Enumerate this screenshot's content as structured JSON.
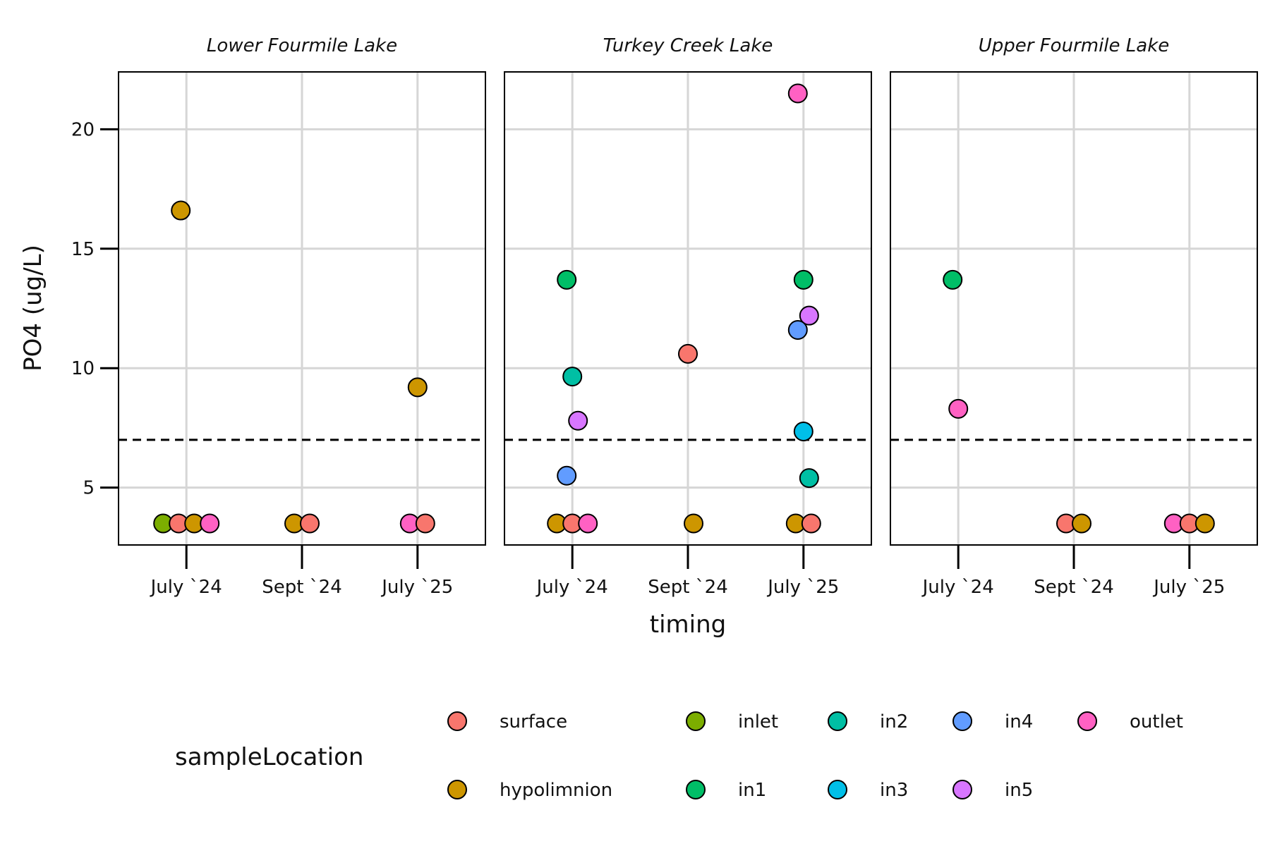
{
  "chart_data": {
    "type": "scatter",
    "facets": [
      {
        "title": "Lower Fourmile Lake",
        "points": [
          {
            "x": "July `24",
            "y": 16.6,
            "location": "hypolimnion"
          },
          {
            "x": "July `24",
            "y": 3.5,
            "location": "inlet"
          },
          {
            "x": "July `24",
            "y": 3.5,
            "location": "surface"
          },
          {
            "x": "July `24",
            "y": 3.5,
            "location": "hypolimnion"
          },
          {
            "x": "July `24",
            "y": 3.5,
            "location": "outlet"
          },
          {
            "x": "Sept `24",
            "y": 3.5,
            "location": "hypolimnion"
          },
          {
            "x": "Sept `24",
            "y": 3.5,
            "location": "surface"
          },
          {
            "x": "July `25",
            "y": 9.2,
            "location": "hypolimnion"
          },
          {
            "x": "July `25",
            "y": 3.5,
            "location": "outlet"
          },
          {
            "x": "July `25",
            "y": 3.5,
            "location": "surface"
          }
        ]
      },
      {
        "title": "Turkey Creek Lake",
        "points": [
          {
            "x": "July `24",
            "y": 13.7,
            "location": "in1"
          },
          {
            "x": "July `24",
            "y": 9.65,
            "location": "in2"
          },
          {
            "x": "July `24",
            "y": 7.8,
            "location": "in5"
          },
          {
            "x": "July `24",
            "y": 5.5,
            "location": "in4"
          },
          {
            "x": "July `24",
            "y": 3.5,
            "location": "hypolimnion"
          },
          {
            "x": "July `24",
            "y": 3.5,
            "location": "surface"
          },
          {
            "x": "July `24",
            "y": 3.5,
            "location": "outlet"
          },
          {
            "x": "Sept `24",
            "y": 10.6,
            "location": "surface"
          },
          {
            "x": "Sept `24",
            "y": 3.5,
            "location": "hypolimnion"
          },
          {
            "x": "July `25",
            "y": 21.5,
            "location": "outlet"
          },
          {
            "x": "July `25",
            "y": 13.7,
            "location": "in1"
          },
          {
            "x": "July `25",
            "y": 12.2,
            "location": "in5"
          },
          {
            "x": "July `25",
            "y": 11.6,
            "location": "in4"
          },
          {
            "x": "July `25",
            "y": 7.35,
            "location": "in3"
          },
          {
            "x": "July `25",
            "y": 5.4,
            "location": "in2"
          },
          {
            "x": "July `25",
            "y": 3.5,
            "location": "hypolimnion"
          },
          {
            "x": "July `25",
            "y": 3.5,
            "location": "surface"
          }
        ]
      },
      {
        "title": "Upper Fourmile Lake",
        "points": [
          {
            "x": "July `24",
            "y": 13.7,
            "location": "in1"
          },
          {
            "x": "July `24",
            "y": 8.3,
            "location": "outlet"
          },
          {
            "x": "Sept `24",
            "y": 3.5,
            "location": "surface"
          },
          {
            "x": "Sept `24",
            "y": 3.5,
            "location": "hypolimnion"
          },
          {
            "x": "July `25",
            "y": 3.5,
            "location": "outlet"
          },
          {
            "x": "July `25",
            "y": 3.5,
            "location": "surface"
          },
          {
            "x": "July `25",
            "y": 3.5,
            "location": "hypolimnion"
          }
        ]
      }
    ],
    "categories": [
      "July `24",
      "Sept `24",
      "July `25"
    ],
    "xlabel": "timing",
    "ylabel": "PO4 (ug/L)",
    "yticks": [
      5,
      10,
      15,
      20
    ],
    "ylim": [
      2.6,
      22.4
    ],
    "reference_line": {
      "y": 7,
      "style": "dashed"
    },
    "grid": true,
    "legend": {
      "title": "sampleLocation",
      "position": "bottom",
      "entries": [
        {
          "label": "surface",
          "color": "#F8766D"
        },
        {
          "label": "hypolimnion",
          "color": "#CD9600"
        },
        {
          "label": "inlet",
          "color": "#7CAE00"
        },
        {
          "label": "in1",
          "color": "#00BE67"
        },
        {
          "label": "in2",
          "color": "#00BFA4"
        },
        {
          "label": "in3",
          "color": "#00BFE8"
        },
        {
          "label": "in4",
          "color": "#619CFF"
        },
        {
          "label": "in5",
          "color": "#D876FF"
        },
        {
          "label": "outlet",
          "color": "#FF61C3"
        }
      ]
    }
  }
}
